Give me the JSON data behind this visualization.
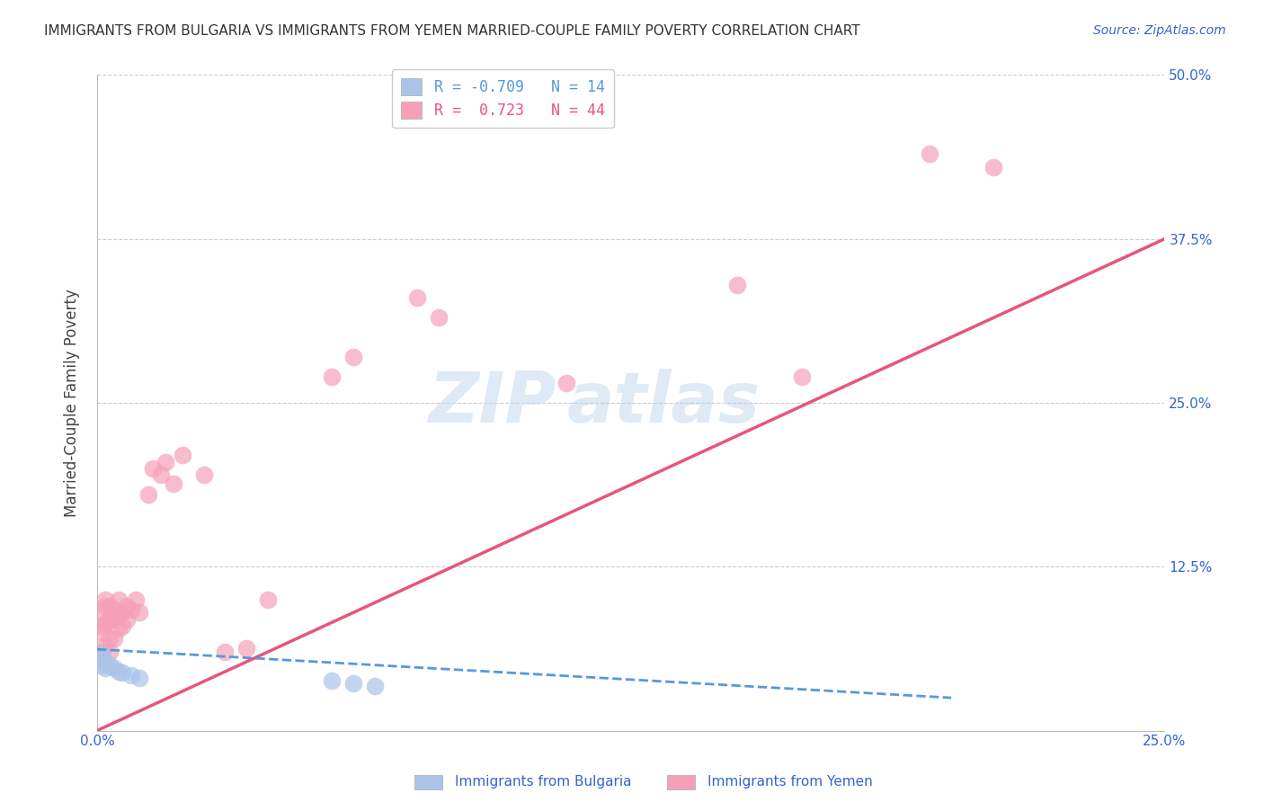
{
  "title": "IMMIGRANTS FROM BULGARIA VS IMMIGRANTS FROM YEMEN MARRIED-COUPLE FAMILY POVERTY CORRELATION CHART",
  "source": "Source: ZipAtlas.com",
  "ylabel": "Married-Couple Family Poverty",
  "xlim": [
    0.0,
    0.25
  ],
  "ylim": [
    0.0,
    0.5
  ],
  "xticks": [
    0.0,
    0.025,
    0.05,
    0.075,
    0.1,
    0.125,
    0.15,
    0.175,
    0.2,
    0.225,
    0.25
  ],
  "ytick_positions": [
    0.0,
    0.125,
    0.25,
    0.375,
    0.5
  ],
  "ytick_labels": [
    "",
    "12.5%",
    "25.0%",
    "37.5%",
    "50.0%"
  ],
  "grid_color": "#cccccc",
  "background_color": "#ffffff",
  "bulgaria_color": "#aac4e8",
  "yemen_color": "#f5a0b8",
  "bulgaria_line_color": "#5599dd",
  "yemen_line_color": "#e8557a",
  "watermark": "ZIPatlas",
  "bulgaria_points": [
    [
      0.001,
      0.05
    ],
    [
      0.001,
      0.055
    ],
    [
      0.001,
      0.058
    ],
    [
      0.002,
      0.048
    ],
    [
      0.002,
      0.052
    ],
    [
      0.003,
      0.05
    ],
    [
      0.004,
      0.048
    ],
    [
      0.005,
      0.045
    ],
    [
      0.006,
      0.044
    ],
    [
      0.008,
      0.042
    ],
    [
      0.01,
      0.04
    ],
    [
      0.055,
      0.038
    ],
    [
      0.06,
      0.036
    ],
    [
      0.065,
      0.034
    ]
  ],
  "yemen_points": [
    [
      0.001,
      0.06
    ],
    [
      0.001,
      0.075
    ],
    [
      0.001,
      0.08
    ],
    [
      0.001,
      0.09
    ],
    [
      0.002,
      0.065
    ],
    [
      0.002,
      0.082
    ],
    [
      0.002,
      0.095
    ],
    [
      0.002,
      0.1
    ],
    [
      0.003,
      0.06
    ],
    [
      0.003,
      0.07
    ],
    [
      0.003,
      0.085
    ],
    [
      0.003,
      0.095
    ],
    [
      0.004,
      0.07
    ],
    [
      0.004,
      0.085
    ],
    [
      0.004,
      0.092
    ],
    [
      0.005,
      0.078
    ],
    [
      0.005,
      0.088
    ],
    [
      0.005,
      0.1
    ],
    [
      0.006,
      0.08
    ],
    [
      0.006,
      0.09
    ],
    [
      0.007,
      0.085
    ],
    [
      0.007,
      0.095
    ],
    [
      0.008,
      0.092
    ],
    [
      0.009,
      0.1
    ],
    [
      0.01,
      0.09
    ],
    [
      0.012,
      0.18
    ],
    [
      0.013,
      0.2
    ],
    [
      0.015,
      0.195
    ],
    [
      0.016,
      0.205
    ],
    [
      0.018,
      0.188
    ],
    [
      0.02,
      0.21
    ],
    [
      0.025,
      0.195
    ],
    [
      0.03,
      0.06
    ],
    [
      0.035,
      0.063
    ],
    [
      0.04,
      0.1
    ],
    [
      0.055,
      0.27
    ],
    [
      0.06,
      0.285
    ],
    [
      0.075,
      0.33
    ],
    [
      0.08,
      0.315
    ],
    [
      0.11,
      0.265
    ],
    [
      0.15,
      0.34
    ],
    [
      0.165,
      0.27
    ],
    [
      0.195,
      0.44
    ],
    [
      0.21,
      0.43
    ]
  ],
  "yemen_line_x0": 0.0,
  "yemen_line_y0": 0.0,
  "yemen_line_x1": 0.25,
  "yemen_line_y1": 0.375,
  "bulgaria_line_x0": 0.0,
  "bulgaria_line_y0": 0.062,
  "bulgaria_line_x1": 0.2,
  "bulgaria_line_y1": 0.025
}
